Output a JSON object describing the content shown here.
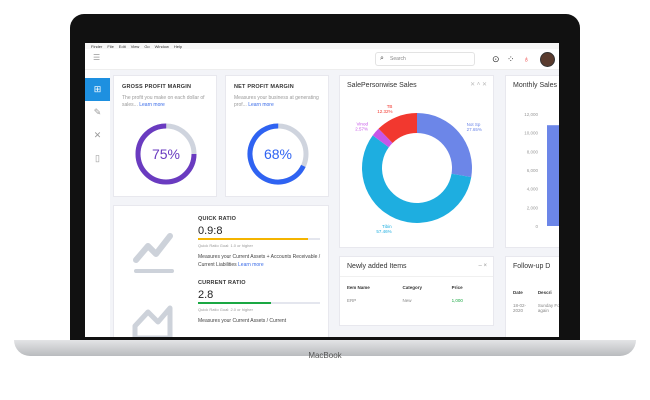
{
  "device": {
    "brand": "MacBook"
  },
  "menubar": [
    "Finder",
    "File",
    "Edit",
    "View",
    "Go",
    "Window",
    "Help"
  ],
  "search": {
    "placeholder": "Search"
  },
  "sidebar": [
    {
      "icon": "dashboard-icon",
      "active": true
    },
    {
      "icon": "edit-icon"
    },
    {
      "icon": "tools-icon"
    },
    {
      "icon": "book-icon"
    }
  ],
  "gross": {
    "title": "GROSS PROFIT MARGIN",
    "desc": "The profit you make on each dollar of sales...",
    "link": "Learn more",
    "value": "75%",
    "percent": 75,
    "color": "#6a3bc0"
  },
  "net": {
    "title": "NET PROFIT MARGIN",
    "desc": "Measures your business at generating prof...",
    "link": "Learn more",
    "value": "68%",
    "percent": 68,
    "color": "#2f63f2"
  },
  "quick": {
    "title": "QUICK RATIO",
    "value": "0.9:8",
    "progress": 90,
    "color": "#f4b400",
    "goal": "Quick Ratio Goal: 1.0 or higher",
    "desc": "Measures your Current Assets + Accounts Receivable / Current Liabilities",
    "link": "Learn more"
  },
  "current": {
    "title": "CURRENT RATIO",
    "value": "2.8",
    "progress": 60,
    "color": "#1aa843",
    "goal": "Quick Ratio Goal: 2.0 or higher",
    "desc": "Measures your Current Assets / Current"
  },
  "chart_data": [
    {
      "type": "pie",
      "title": "SalePersonwise Sales",
      "categories": [
        "Not Sp",
        "Tibin",
        "Vinod",
        "TB"
      ],
      "values": [
        27.65,
        57.46,
        2.57,
        12.32
      ],
      "labels": [
        "27.65%",
        "57.46%",
        "2.57%",
        "12.32%"
      ],
      "colors": [
        "#6c86e8",
        "#1eaee0",
        "#c656e8",
        "#f2382f"
      ]
    },
    {
      "type": "bar",
      "title": "Monthly Sales",
      "yticks": [
        "12,000",
        "10,000",
        "8,000",
        "6,000",
        "4,000",
        "2,000",
        "0"
      ],
      "ylim": [
        0,
        12000
      ],
      "values": [
        10800
      ],
      "colors": [
        "#6c86e8"
      ]
    }
  ],
  "items": {
    "title": "Newly added Items",
    "columns": [
      "Item Name",
      "Category",
      "Price"
    ],
    "rows": [
      [
        "ERP",
        "New",
        "1,000"
      ]
    ]
  },
  "followup": {
    "title": "Follow-up D",
    "columns": [
      "Date",
      "Descri"
    ],
    "rows": [
      [
        "18-02-2020",
        "Sunday Follow again"
      ]
    ]
  }
}
